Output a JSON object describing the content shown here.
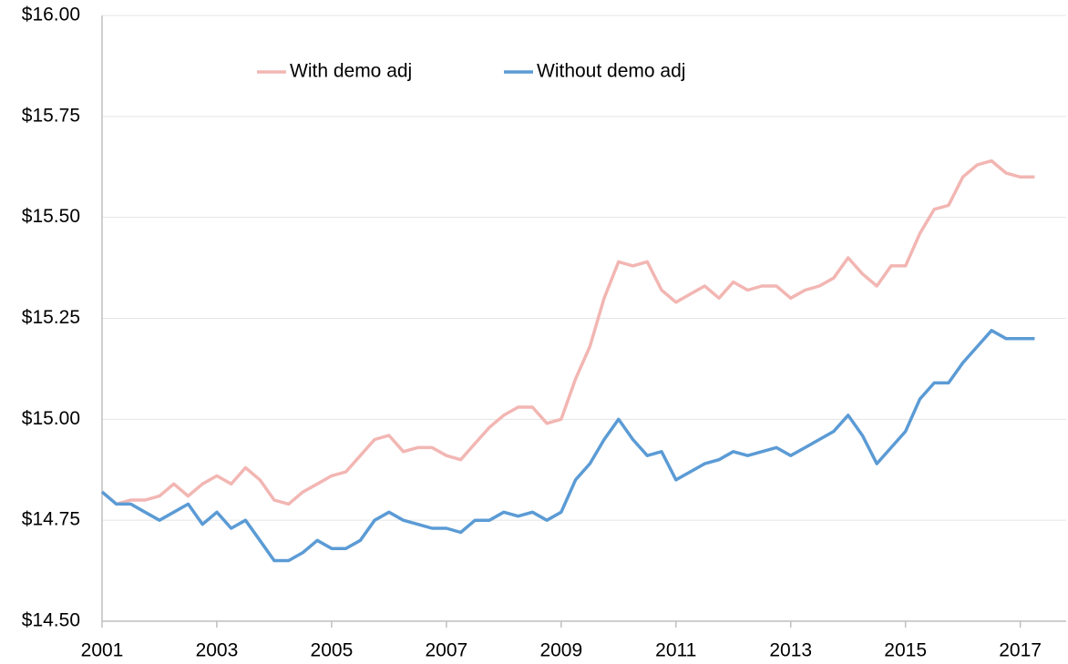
{
  "chart_data": {
    "type": "line",
    "x": [
      2001.0,
      2001.25,
      2001.5,
      2001.75,
      2002.0,
      2002.25,
      2002.5,
      2002.75,
      2003.0,
      2003.25,
      2003.5,
      2003.75,
      2004.0,
      2004.25,
      2004.5,
      2004.75,
      2005.0,
      2005.25,
      2005.5,
      2005.75,
      2006.0,
      2006.25,
      2006.5,
      2006.75,
      2007.0,
      2007.25,
      2007.5,
      2007.75,
      2008.0,
      2008.25,
      2008.5,
      2008.75,
      2009.0,
      2009.25,
      2009.5,
      2009.75,
      2010.0,
      2010.25,
      2010.5,
      2010.75,
      2011.0,
      2011.25,
      2011.5,
      2011.75,
      2012.0,
      2012.25,
      2012.5,
      2012.75,
      2013.0,
      2013.25,
      2013.5,
      2013.75,
      2014.0,
      2014.25,
      2014.5,
      2014.75,
      2015.0,
      2015.25,
      2015.5,
      2015.75,
      2016.0,
      2016.25,
      2016.5,
      2016.75,
      2017.0,
      2017.25
    ],
    "series": [
      {
        "name": "With demo adj",
        "color": "#f2b6b3",
        "values": [
          14.82,
          14.79,
          14.8,
          14.8,
          14.81,
          14.84,
          14.81,
          14.84,
          14.86,
          14.84,
          14.88,
          14.85,
          14.8,
          14.79,
          14.82,
          14.84,
          14.86,
          14.87,
          14.91,
          14.95,
          14.96,
          14.92,
          14.93,
          14.93,
          14.91,
          14.9,
          14.94,
          14.98,
          15.01,
          15.03,
          15.03,
          14.99,
          15.0,
          15.1,
          15.18,
          15.3,
          15.39,
          15.38,
          15.39,
          15.32,
          15.29,
          15.31,
          15.33,
          15.3,
          15.34,
          15.32,
          15.33,
          15.33,
          15.3,
          15.32,
          15.33,
          15.35,
          15.4,
          15.36,
          15.33,
          15.38,
          15.38,
          15.46,
          15.52,
          15.53,
          15.6,
          15.63,
          15.64,
          15.61,
          15.6,
          15.6
        ]
      },
      {
        "name": "Without demo adj",
        "color": "#5b9bd5",
        "values": [
          14.82,
          14.79,
          14.79,
          14.77,
          14.75,
          14.77,
          14.79,
          14.74,
          14.77,
          14.73,
          14.75,
          14.7,
          14.65,
          14.65,
          14.67,
          14.7,
          14.68,
          14.68,
          14.7,
          14.75,
          14.77,
          14.75,
          14.74,
          14.73,
          14.73,
          14.72,
          14.75,
          14.75,
          14.77,
          14.76,
          14.77,
          14.75,
          14.77,
          14.85,
          14.89,
          14.95,
          15.0,
          14.95,
          14.91,
          14.92,
          14.85,
          14.87,
          14.89,
          14.9,
          14.92,
          14.91,
          14.92,
          14.93,
          14.91,
          14.93,
          14.95,
          14.97,
          15.01,
          14.96,
          14.89,
          14.93,
          14.97,
          15.05,
          15.09,
          15.09,
          15.14,
          15.18,
          15.22,
          15.2,
          15.2,
          15.2
        ]
      }
    ],
    "xlim": [
      2001,
      2017.8
    ],
    "xticks": [
      2001,
      2003,
      2005,
      2007,
      2009,
      2011,
      2013,
      2015,
      2017
    ],
    "ylim": [
      14.5,
      16.0
    ],
    "yticks": [
      {
        "value": 14.5,
        "label": "$14.50"
      },
      {
        "value": 14.75,
        "label": "$14.75"
      },
      {
        "value": 15.0,
        "label": "$15.00"
      },
      {
        "value": 15.25,
        "label": "$15.25"
      },
      {
        "value": 15.5,
        "label": "$15.50"
      },
      {
        "value": 15.75,
        "label": "$15.75"
      },
      {
        "value": 16.0,
        "label": "$16.00"
      }
    ],
    "grid": true
  }
}
